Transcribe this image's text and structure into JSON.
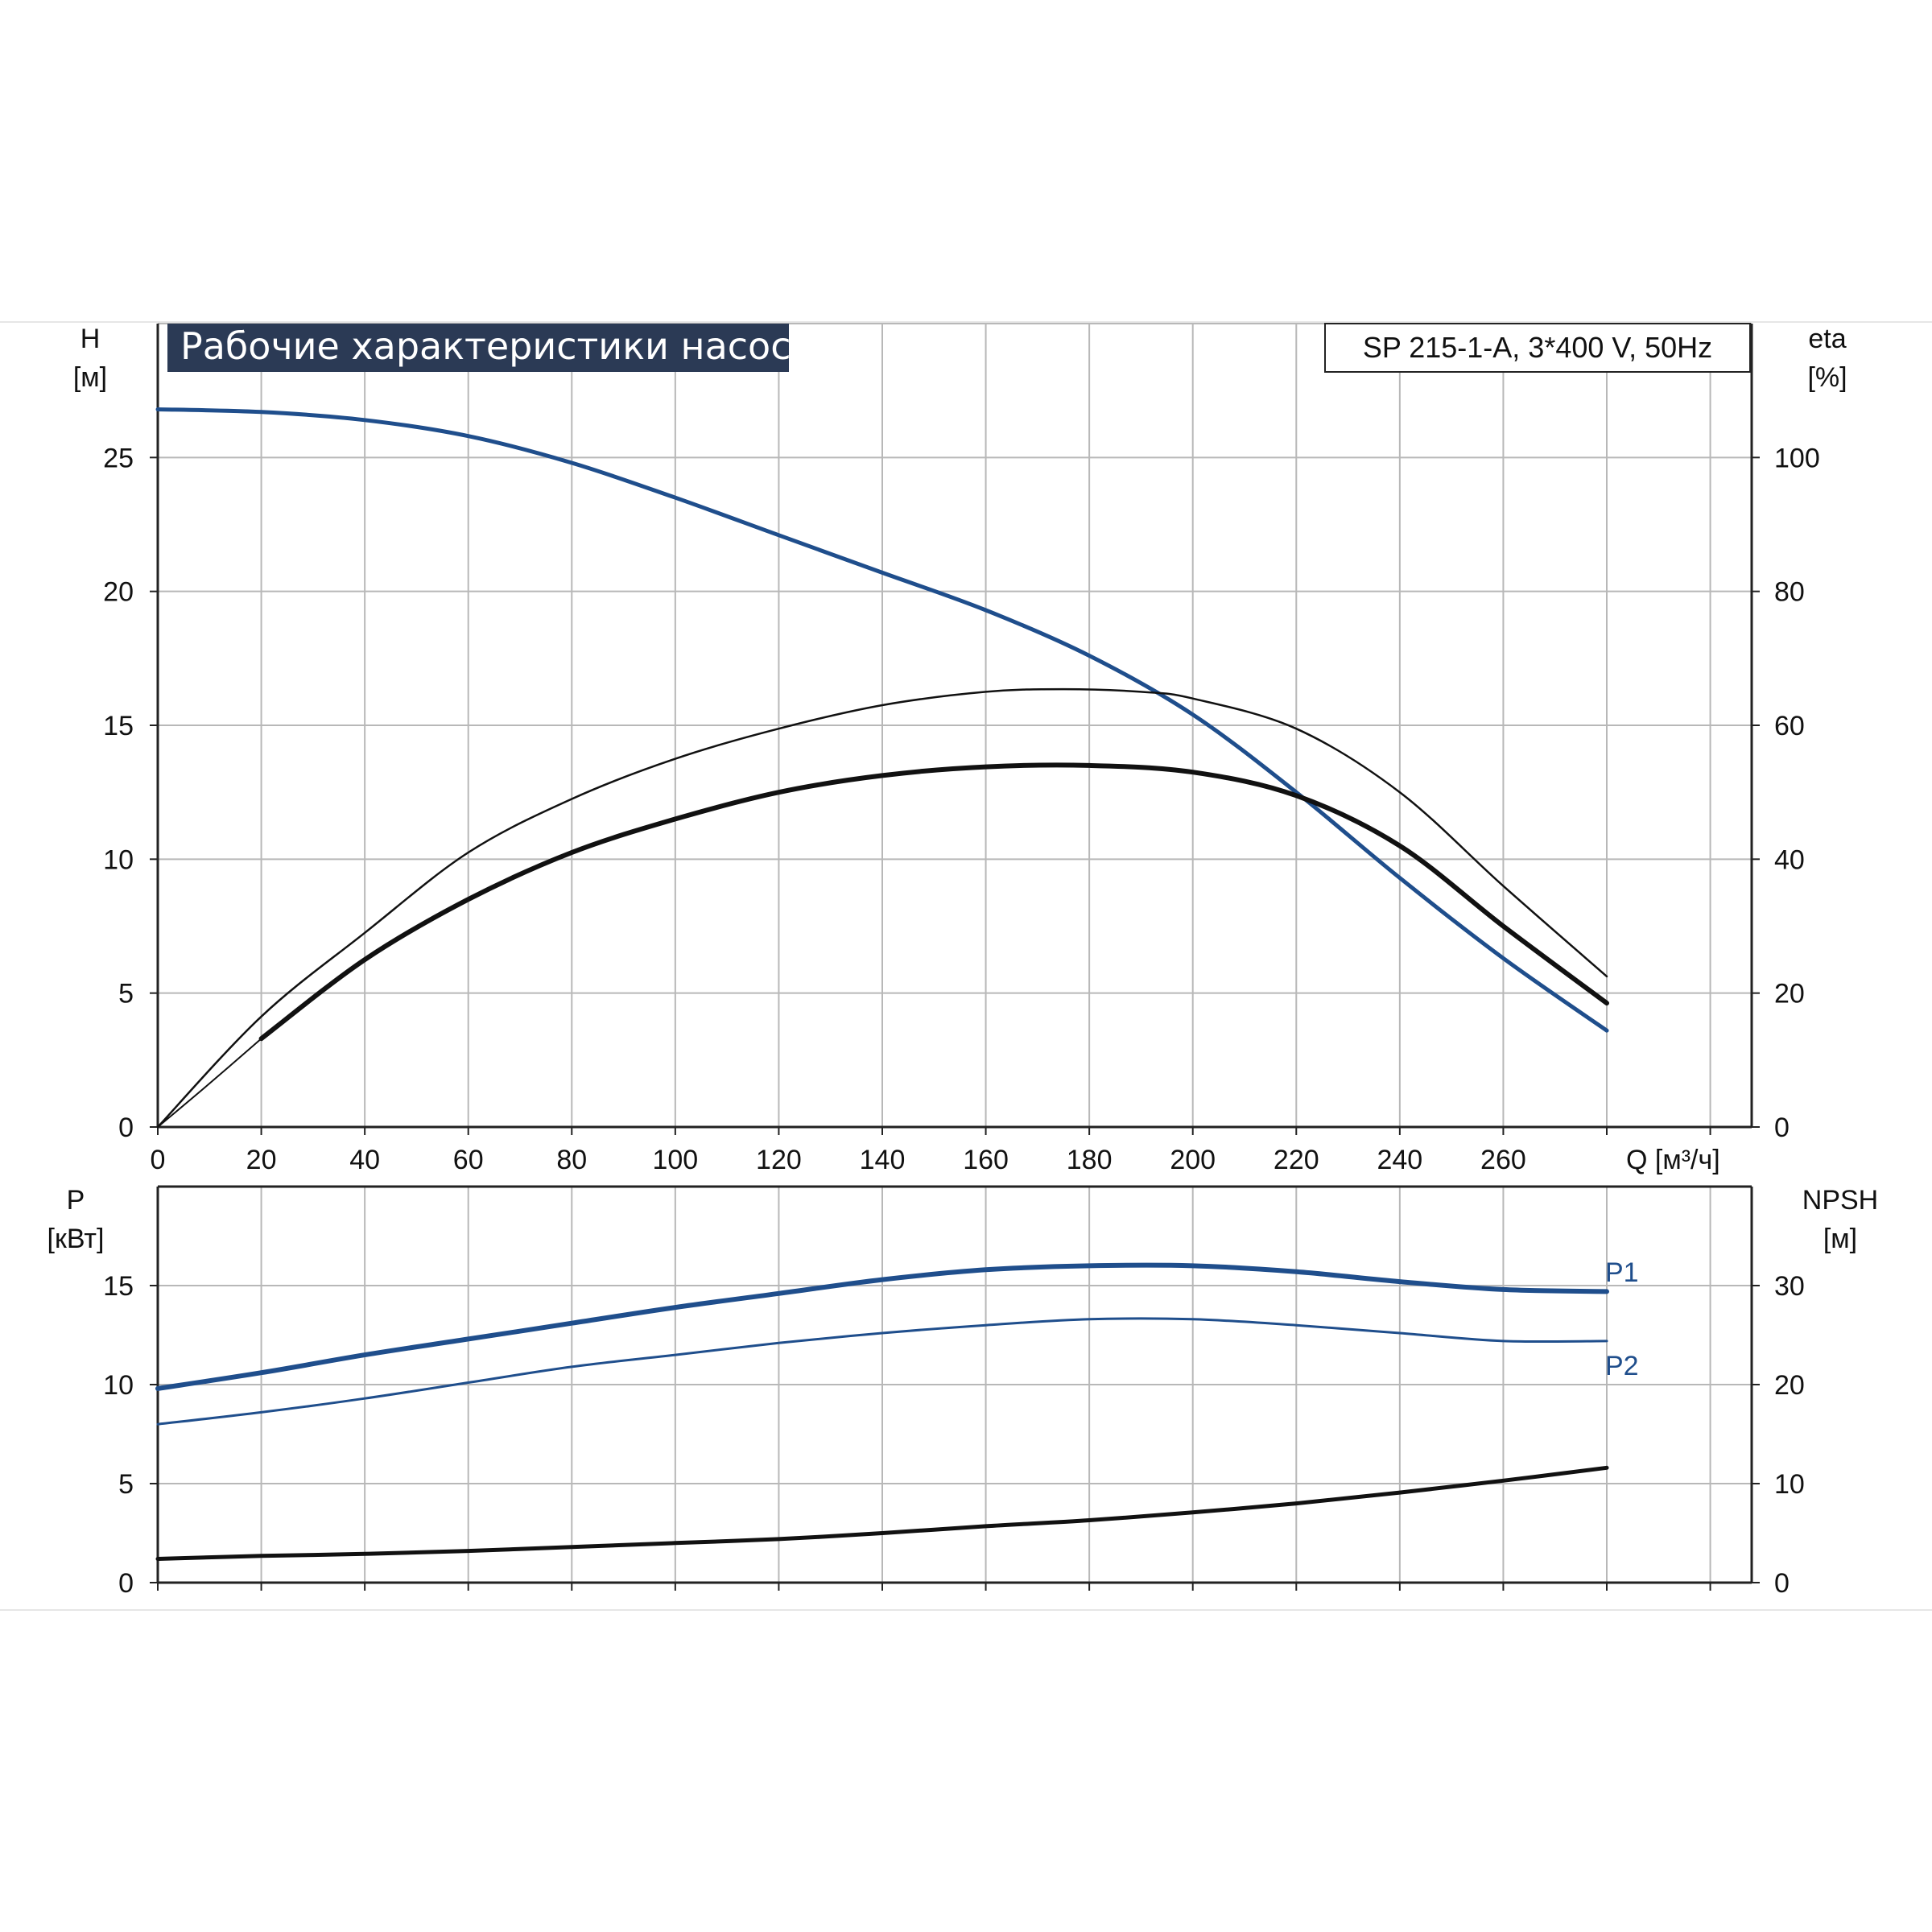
{
  "chart_data": [
    {
      "type": "line",
      "title": "Рабочие характеристики насоса",
      "subtitle": "SP 215-1-A, 3*400 V, 50Hz",
      "xlabel": "Q [м³/ч]",
      "xticks": [
        "0",
        "20",
        "40",
        "60",
        "80",
        "100",
        "120",
        "140",
        "160",
        "180",
        "200",
        "220",
        "240",
        "260"
      ],
      "xlim": [
        0,
        308
      ],
      "ylabel_left": [
        "H",
        "[м]"
      ],
      "ylabel_right": [
        "eta",
        "[%]"
      ],
      "yticks_left": [
        "0",
        "5",
        "10",
        "15",
        "20",
        "25"
      ],
      "yticks_right": [
        "0",
        "20",
        "40",
        "60",
        "80",
        "100"
      ],
      "ylim_left": [
        0,
        30
      ],
      "ylim_right": [
        0,
        120
      ],
      "grid": true,
      "series": [
        {
          "role": "head",
          "axis": "left",
          "color": "#1f4e8c",
          "width": 5,
          "points": [
            [
              0,
              26.8
            ],
            [
              20,
              26.7
            ],
            [
              40,
              26.4
            ],
            [
              60,
              25.8
            ],
            [
              80,
              24.8
            ],
            [
              100,
              23.5
            ],
            [
              120,
              22.1
            ],
            [
              140,
              20.7
            ],
            [
              160,
              19.3
            ],
            [
              180,
              17.6
            ],
            [
              200,
              15.4
            ],
            [
              220,
              12.5
            ],
            [
              240,
              9.3
            ],
            [
              260,
              6.3
            ],
            [
              280,
              3.6
            ]
          ]
        },
        {
          "role": "efficiency-thin",
          "axis": "right",
          "color": "#111111",
          "width": 2.5,
          "points": [
            [
              0,
              0
            ],
            [
              20,
              16.5
            ],
            [
              40,
              29
            ],
            [
              60,
              41
            ],
            [
              80,
              49
            ],
            [
              100,
              55
            ],
            [
              120,
              59.5
            ],
            [
              140,
              63
            ],
            [
              160,
              65
            ],
            [
              175,
              65.4
            ],
            [
              190,
              65
            ],
            [
              200,
              64
            ],
            [
              220,
              59.5
            ],
            [
              240,
              50
            ],
            [
              260,
              36
            ],
            [
              280,
              22.5
            ]
          ]
        },
        {
          "role": "efficiency-thick-start",
          "axis": "right",
          "color": "#111111",
          "width": 2,
          "points": [
            [
              0,
              0
            ],
            [
              10,
              6.5
            ],
            [
              20,
              13.2
            ]
          ]
        },
        {
          "role": "efficiency-thick",
          "axis": "right",
          "color": "#111111",
          "width": 6,
          "points": [
            [
              20,
              13.2
            ],
            [
              40,
              25
            ],
            [
              60,
              34
            ],
            [
              80,
              41
            ],
            [
              100,
              46
            ],
            [
              120,
              50
            ],
            [
              140,
              52.5
            ],
            [
              160,
              53.8
            ],
            [
              180,
              54
            ],
            [
              200,
              53
            ],
            [
              220,
              49.5
            ],
            [
              240,
              42
            ],
            [
              260,
              30
            ],
            [
              280,
              18.5
            ]
          ]
        }
      ]
    },
    {
      "type": "line",
      "xticks": [
        "0",
        "20",
        "40",
        "60",
        "80",
        "100",
        "120",
        "140",
        "160",
        "180",
        "200",
        "220",
        "240",
        "260"
      ],
      "xlim": [
        0,
        308
      ],
      "ylabel_left": [
        "P",
        "[кВт]"
      ],
      "ylabel_right": [
        "NPSH",
        "[м]"
      ],
      "yticks_left": [
        "0",
        "5",
        "10",
        "15"
      ],
      "yticks_right": [
        "0",
        "10",
        "20",
        "30"
      ],
      "ylim_left": [
        0,
        20
      ],
      "ylim_right": [
        0,
        40
      ],
      "grid": true,
      "annotations": [
        "P1",
        "P2"
      ],
      "series": [
        {
          "name": "P1",
          "axis": "left",
          "color": "#1f4e8c",
          "width": 6,
          "points": [
            [
              0,
              9.8
            ],
            [
              20,
              10.6
            ],
            [
              40,
              11.5
            ],
            [
              60,
              12.3
            ],
            [
              80,
              13.1
            ],
            [
              100,
              13.9
            ],
            [
              120,
              14.6
            ],
            [
              140,
              15.3
            ],
            [
              160,
              15.8
            ],
            [
              180,
              16.0
            ],
            [
              200,
              16.0
            ],
            [
              220,
              15.7
            ],
            [
              240,
              15.2
            ],
            [
              260,
              14.8
            ],
            [
              280,
              14.7
            ]
          ]
        },
        {
          "name": "P2",
          "axis": "left",
          "color": "#1f4e8c",
          "width": 3,
          "points": [
            [
              0,
              8.0
            ],
            [
              20,
              8.6
            ],
            [
              40,
              9.3
            ],
            [
              60,
              10.1
            ],
            [
              80,
              10.9
            ],
            [
              100,
              11.5
            ],
            [
              120,
              12.1
            ],
            [
              140,
              12.6
            ],
            [
              160,
              13.0
            ],
            [
              180,
              13.3
            ],
            [
              200,
              13.3
            ],
            [
              220,
              13.0
            ],
            [
              240,
              12.6
            ],
            [
              260,
              12.2
            ],
            [
              280,
              12.2
            ]
          ]
        },
        {
          "role": "npsh",
          "axis": "right",
          "color": "#111111",
          "width": 5,
          "points": [
            [
              0,
              2.4
            ],
            [
              20,
              2.7
            ],
            [
              40,
              2.9
            ],
            [
              60,
              3.2
            ],
            [
              80,
              3.6
            ],
            [
              100,
              4.0
            ],
            [
              120,
              4.4
            ],
            [
              140,
              5.0
            ],
            [
              160,
              5.7
            ],
            [
              180,
              6.3
            ],
            [
              200,
              7.1
            ],
            [
              220,
              8.0
            ],
            [
              240,
              9.1
            ],
            [
              260,
              10.3
            ],
            [
              280,
              11.6
            ]
          ]
        }
      ]
    }
  ]
}
